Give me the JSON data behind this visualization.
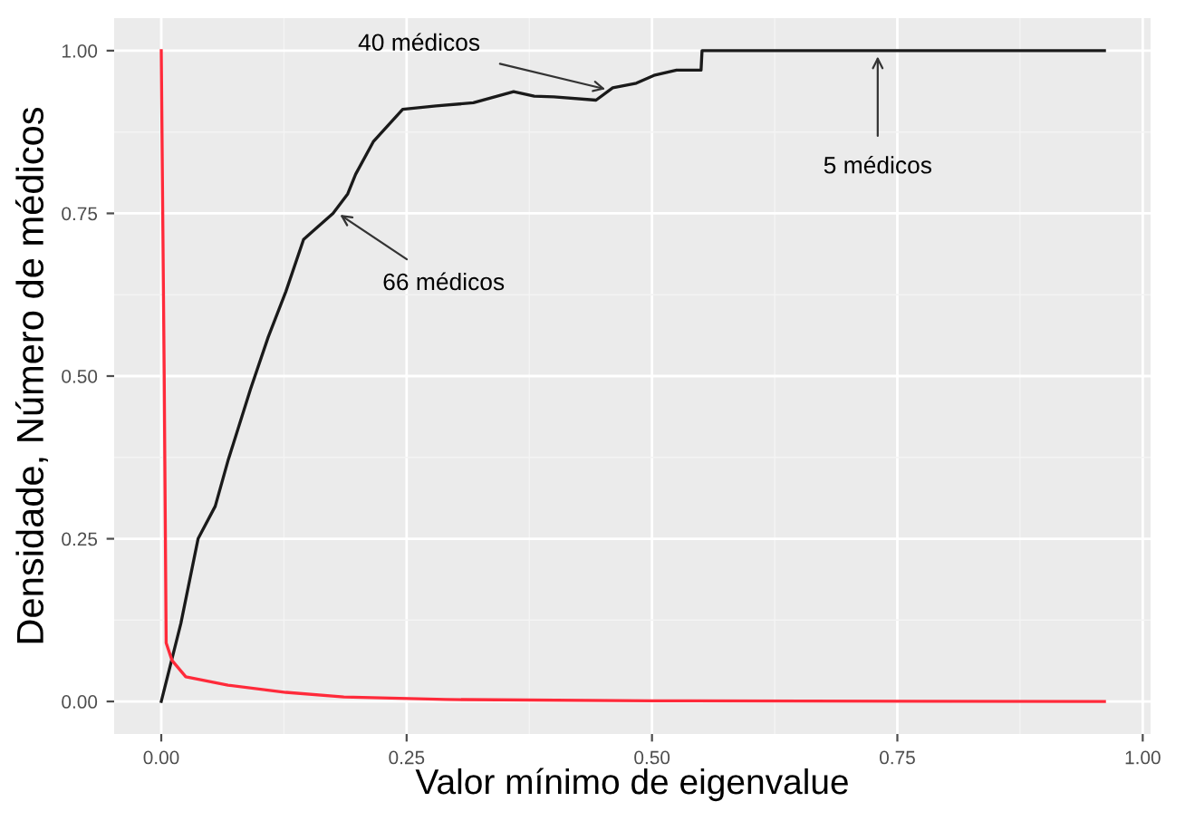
{
  "chart_data": {
    "type": "line",
    "xlabel": "Valor mínimo de eigenvalue",
    "ylabel": "Densidade, Número de médicos",
    "series": [
      {
        "color": "#1a1a1a",
        "x": [
          0,
          0.02,
          0.0375,
          0.055,
          0.068,
          0.091,
          0.109,
          0.127,
          0.145,
          0.175,
          0.19,
          0.198,
          0.216,
          0.225,
          0.246,
          0.28,
          0.318,
          0.359,
          0.38,
          0.4,
          0.443,
          0.46,
          0.484,
          0.502,
          0.525,
          0.55,
          0.551,
          0.961
        ],
        "values": [
          0,
          0.12,
          0.25,
          0.3,
          0.37,
          0.48,
          0.56,
          0.63,
          0.71,
          0.75,
          0.78,
          0.81,
          0.86,
          0.875,
          0.91,
          0.915,
          0.92,
          0.937,
          0.93,
          0.929,
          0.924,
          0.943,
          0.95,
          0.962,
          0.97,
          0.97,
          1.0,
          1.0
        ]
      },
      {
        "color": "#ff2a3a",
        "x": [
          0,
          0.003,
          0.005,
          0.011,
          0.025,
          0.068,
          0.127,
          0.186,
          0.29,
          0.5,
          0.961
        ],
        "values": [
          1.0,
          0.5,
          0.09,
          0.063,
          0.038,
          0.025,
          0.014,
          0.007,
          0.003,
          0.001,
          0.0
        ]
      }
    ],
    "xlim": [
      -0.048,
      1.008
    ],
    "ylim": [
      -0.05,
      1.05
    ],
    "xticks": [
      {
        "value": 0,
        "label": "0.00"
      },
      {
        "value": 0.25,
        "label": "0.25"
      },
      {
        "value": 0.5,
        "label": "0.50"
      },
      {
        "value": 0.75,
        "label": "0.75"
      },
      {
        "value": 1,
        "label": "1.00"
      }
    ],
    "yticks": [
      {
        "value": 0,
        "label": "0.00"
      },
      {
        "value": 0.25,
        "label": "0.25"
      },
      {
        "value": 0.5,
        "label": "0.50"
      },
      {
        "value": 0.75,
        "label": "0.75"
      },
      {
        "value": 1,
        "label": "1.00"
      }
    ],
    "grid": true,
    "annotations": [
      {
        "text": "40 médicos",
        "x": 0.455,
        "y": 0.94
      },
      {
        "text": "66 médicos",
        "x": 0.18,
        "y": 0.75
      },
      {
        "text": "5 médicos",
        "x": 0.73,
        "y": 0.995
      }
    ]
  }
}
